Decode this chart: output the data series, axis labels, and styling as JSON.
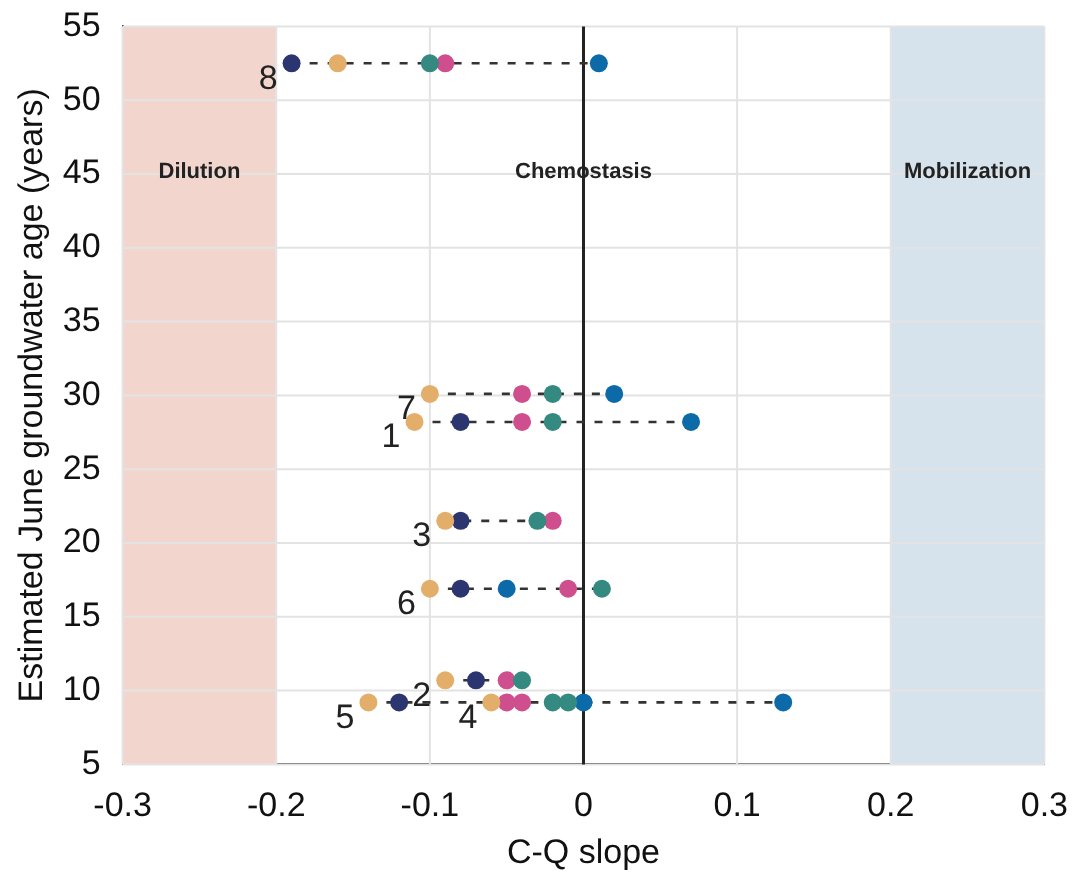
{
  "chart_data": {
    "type": "scatter",
    "xlabel": "C-Q slope",
    "ylabel": "Estimated June groundwater age (years)",
    "xlim": [
      -0.3,
      0.3
    ],
    "xticks": [
      -0.3,
      -0.2,
      -0.1,
      0,
      0.1,
      0.2,
      0.3
    ],
    "ylim": [
      5,
      55
    ],
    "yticks": [
      5,
      10,
      15,
      20,
      25,
      30,
      35,
      40,
      45,
      50,
      55
    ],
    "grid": true,
    "legend": false,
    "marker": "circle",
    "series": [
      {
        "type": "line",
        "line_style": "dashed",
        "marker": "none",
        "color": "#333333",
        "x": [
          -0.19,
          0.01
        ],
        "values": [
          52.5,
          52.5
        ]
      },
      {
        "type": "line",
        "line_style": "dashed",
        "marker": "none",
        "color": "#333333",
        "x": [
          -0.1,
          0.02
        ],
        "values": [
          30.1,
          30.1
        ]
      },
      {
        "type": "line",
        "line_style": "dashed",
        "marker": "none",
        "color": "#333333",
        "x": [
          -0.11,
          0.07
        ],
        "values": [
          28.2,
          28.2
        ]
      },
      {
        "type": "line",
        "line_style": "dashed",
        "marker": "none",
        "color": "#333333",
        "x": [
          -0.09,
          -0.02
        ],
        "values": [
          21.5,
          21.5
        ]
      },
      {
        "type": "line",
        "line_style": "dashed",
        "marker": "none",
        "color": "#333333",
        "x": [
          -0.1,
          0.012
        ],
        "values": [
          16.9,
          16.9
        ]
      },
      {
        "type": "line",
        "line_style": "dashed",
        "marker": "none",
        "color": "#333333",
        "x": [
          -0.09,
          -0.04
        ],
        "values": [
          10.7,
          10.7
        ]
      },
      {
        "type": "line",
        "line_style": "dashed",
        "marker": "none",
        "color": "#333333",
        "x": [
          -0.14,
          0.13
        ],
        "values": [
          9.2,
          9.2
        ]
      },
      {
        "color": "#e3ae6a",
        "x": [
          -0.16,
          -0.1,
          -0.11,
          -0.09,
          -0.1,
          -0.09,
          -0.14,
          -0.06
        ],
        "values": [
          52.5,
          30.1,
          28.2,
          21.5,
          16.9,
          10.7,
          9.2,
          9.2
        ]
      },
      {
        "color": "#2b3570",
        "x": [
          -0.19,
          -0.08,
          -0.08,
          -0.08,
          -0.07,
          -0.12
        ],
        "values": [
          52.5,
          28.2,
          21.5,
          16.9,
          10.7,
          9.2
        ]
      },
      {
        "color": "#348a80",
        "x": [
          -0.1,
          -0.02,
          -0.02,
          -0.03,
          0.012,
          -0.04,
          -0.02,
          -0.01
        ],
        "values": [
          52.5,
          30.1,
          28.2,
          21.5,
          16.9,
          10.7,
          9.2,
          9.2
        ]
      },
      {
        "color": "#cf4f8e",
        "x": [
          -0.09,
          -0.04,
          -0.04,
          -0.02,
          -0.01,
          -0.05,
          -0.05,
          -0.04
        ],
        "values": [
          52.5,
          30.1,
          28.2,
          21.5,
          16.9,
          10.7,
          9.2,
          9.2
        ]
      },
      {
        "color": "#0d6aa8",
        "x": [
          0.01,
          0.02,
          0.07,
          -0.05,
          0.13,
          0.0
        ],
        "values": [
          52.5,
          30.1,
          28.2,
          16.9,
          9.2,
          9.2
        ]
      }
    ],
    "bands": [
      {
        "axis": "x",
        "from": -0.3,
        "to": -0.2,
        "label": "Dilution",
        "color": "#f2d6ce"
      },
      {
        "axis": "x",
        "from": 0.2,
        "to": 0.3,
        "label": "Mobilization",
        "color": "#d6e2ec"
      }
    ],
    "ref_lines": [
      {
        "axis": "x",
        "value": 0,
        "color": "#222222"
      }
    ],
    "annotations": [
      "Chemostasis",
      {
        "text": "8",
        "x": -0.19,
        "y": 52.5
      },
      {
        "text": "7",
        "x": -0.1,
        "y": 30.1
      },
      {
        "text": "1",
        "x": -0.11,
        "y": 28.2
      },
      {
        "text": "3",
        "x": -0.09,
        "y": 21.5
      },
      {
        "text": "6",
        "x": -0.1,
        "y": 16.9
      },
      {
        "text": "2",
        "x": -0.09,
        "y": 10.7
      },
      {
        "text": "5",
        "x": -0.14,
        "y": 9.2
      },
      {
        "text": "4",
        "x": -0.06,
        "y": 9.2
      }
    ]
  }
}
